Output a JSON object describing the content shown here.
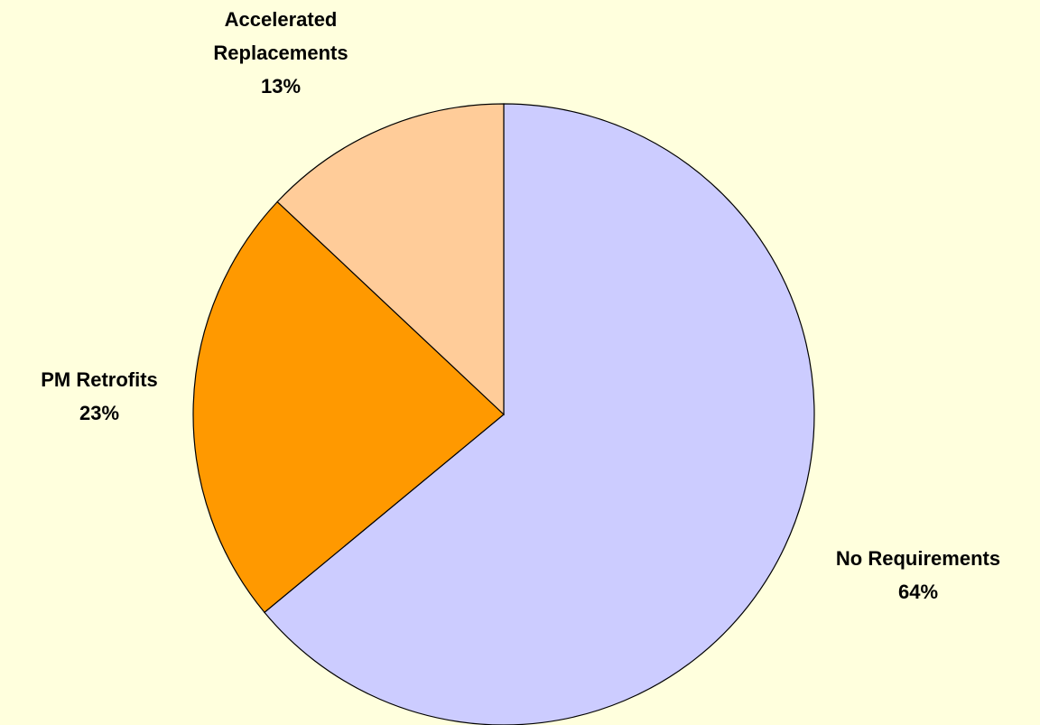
{
  "chart_data": {
    "type": "pie",
    "title": "",
    "slices": [
      {
        "name": "No Requirements",
        "value": 64,
        "label_lines": [
          "No Requirements",
          "64%"
        ],
        "color": "#CCCCFF"
      },
      {
        "name": "PM Retrofits",
        "value": 23,
        "label_lines": [
          "PM Retrofits",
          "23%"
        ],
        "color": "#FF9900"
      },
      {
        "name": "Accelerated Replacements",
        "value": 13,
        "label_lines": [
          "Accelerated",
          "Replacements",
          "13%"
        ],
        "color": "#FFCC99"
      }
    ],
    "start_angle_deg": 0,
    "direction": "clockwise",
    "legend": "none"
  },
  "colors": {
    "background": "#FFFFDD",
    "slice_border": "#000000"
  }
}
